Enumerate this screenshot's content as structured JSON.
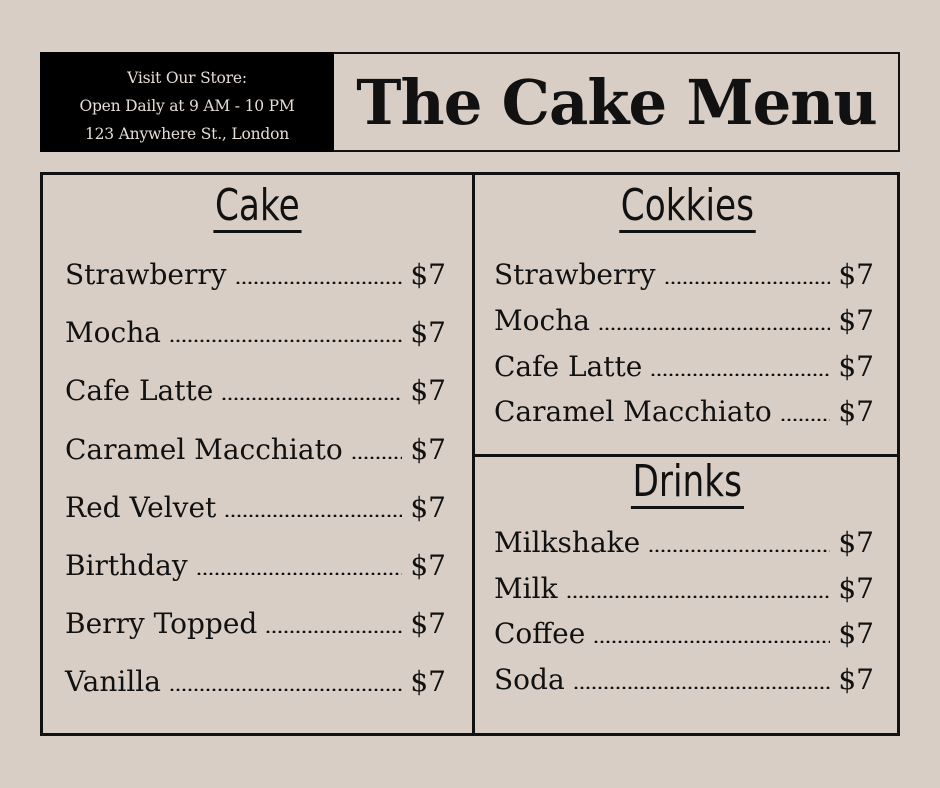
{
  "store_info": {
    "line1": "Visit Our Store:",
    "line2": "Open Daily at 9 AM - 10 PM",
    "line3": "123 Anywhere St., London"
  },
  "title": "The Cake Menu",
  "sections": [
    {
      "heading": "Cake",
      "items": [
        {
          "name": "Strawberry",
          "price": "$7"
        },
        {
          "name": "Mocha",
          "price": "$7"
        },
        {
          "name": "Cafe Latte",
          "price": "$7"
        },
        {
          "name": "Caramel Macchiato",
          "price": "$7"
        },
        {
          "name": "Red Velvet",
          "price": "$7"
        },
        {
          "name": "Birthday",
          "price": "$7"
        },
        {
          "name": "Berry Topped",
          "price": "$7"
        },
        {
          "name": "Vanilla",
          "price": "$7"
        }
      ]
    },
    {
      "heading": "Cokkies",
      "items": [
        {
          "name": "Strawberry",
          "price": "$7"
        },
        {
          "name": "Mocha",
          "price": "$7"
        },
        {
          "name": "Cafe Latte",
          "price": "$7"
        },
        {
          "name": "Caramel Macchiato",
          "price": "$7"
        }
      ]
    },
    {
      "heading": "Drinks",
      "items": [
        {
          "name": "Milkshake",
          "price": "$7"
        },
        {
          "name": "Milk",
          "price": "$7"
        },
        {
          "name": "Coffee",
          "price": "$7"
        },
        {
          "name": "Soda",
          "price": "$7"
        }
      ]
    }
  ]
}
